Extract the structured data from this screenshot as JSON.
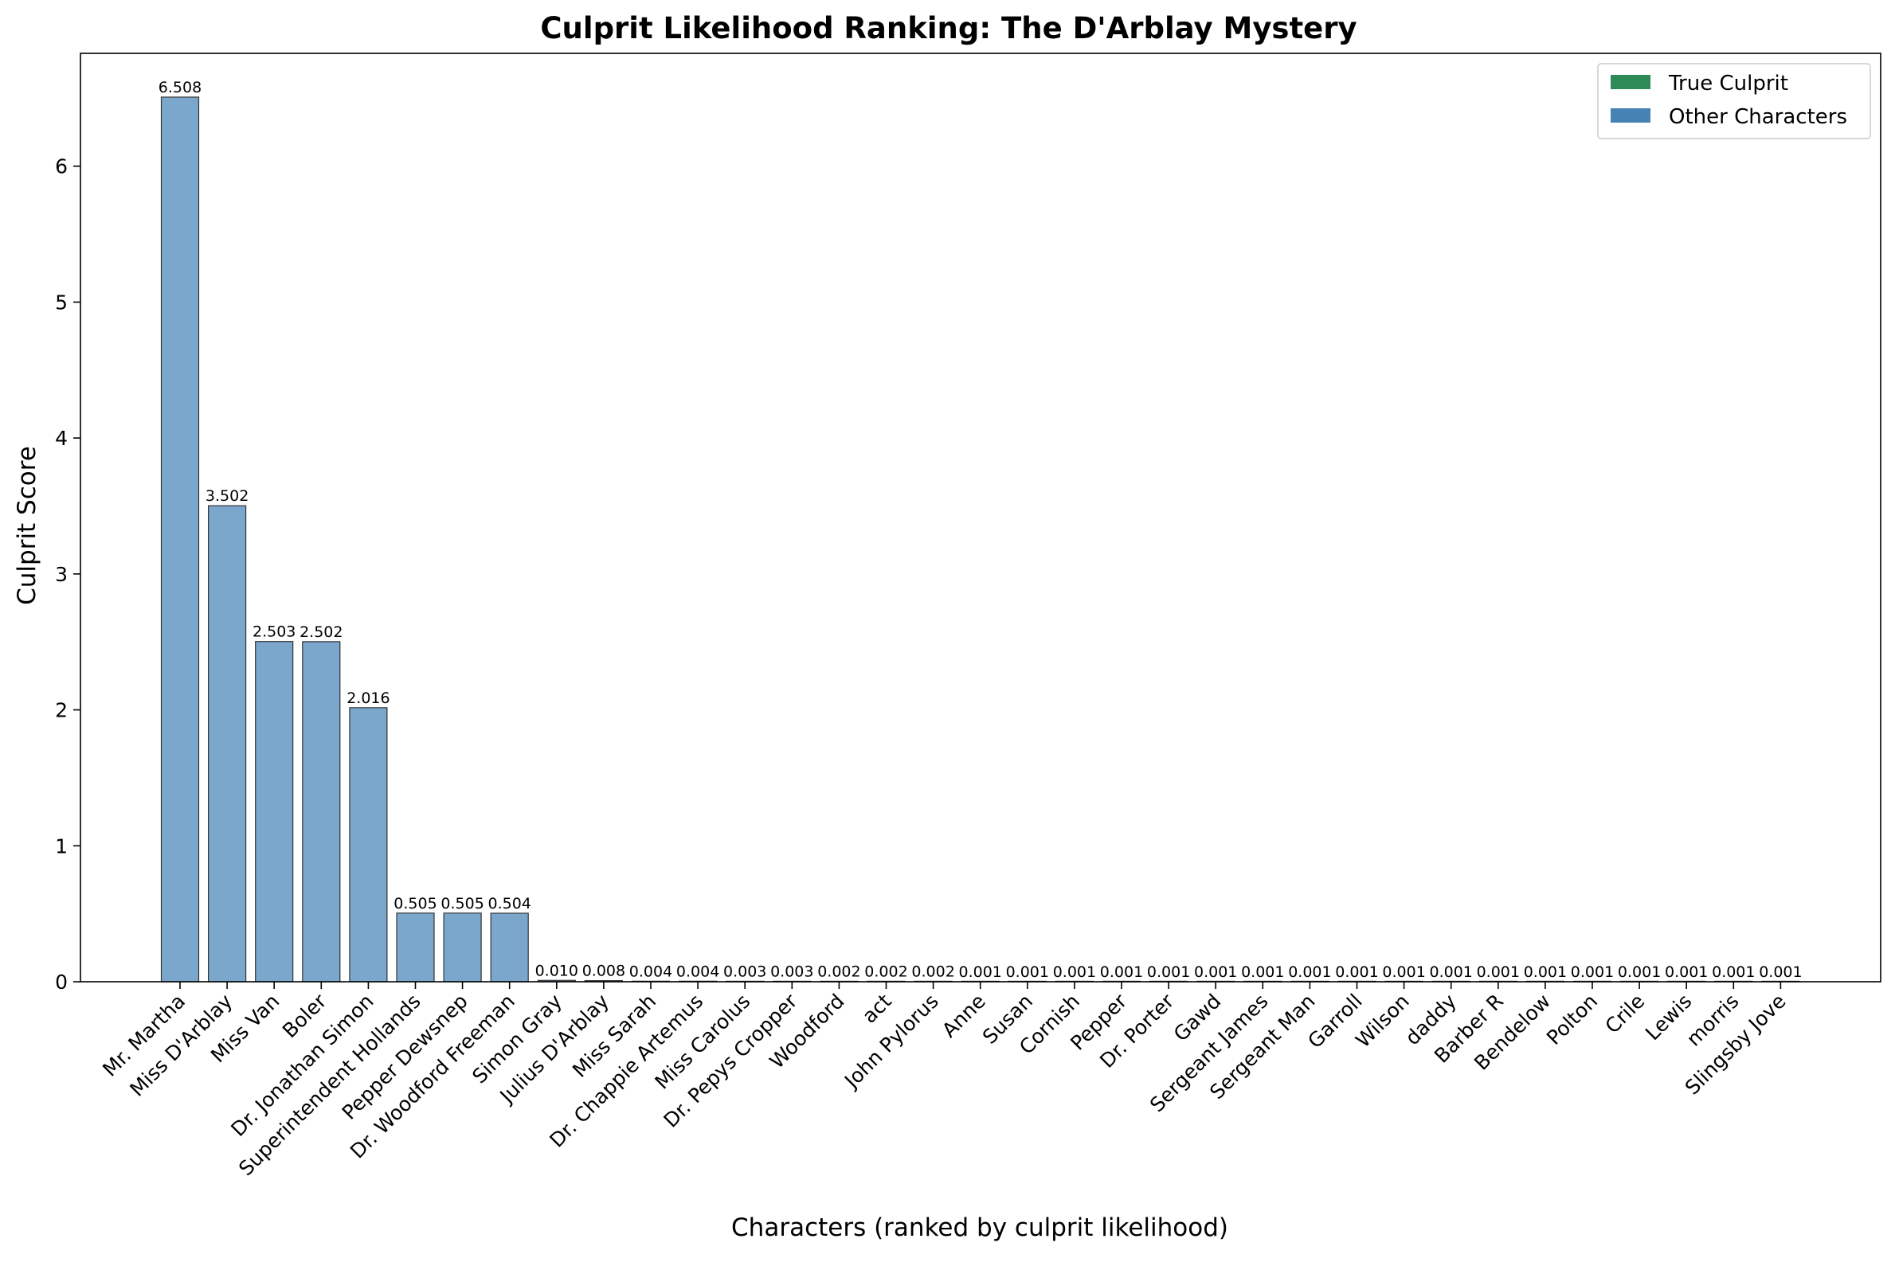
{
  "chart_data": {
    "type": "bar",
    "title": "Culprit Likelihood Ranking: The D'Arblay Mystery",
    "xlabel": "Characters (ranked by culprit likelihood)",
    "ylabel": "Culprit Score",
    "ylim": [
      0,
      6.83
    ],
    "yticks": [
      0,
      1,
      2,
      3,
      4,
      5,
      6
    ],
    "grid": false,
    "legend_position": "top-right",
    "legend": [
      {
        "label": "True Culprit",
        "color": "#2e8b57"
      },
      {
        "label": "Other Characters",
        "color": "#4682b4"
      }
    ],
    "bar_color": "#7ba7cc",
    "bar_edge_color": "#333333",
    "categories": [
      "Mr. Martha",
      "Miss D'Arblay",
      "Miss Van",
      "Boler",
      "Dr. Jonathan Simon",
      "Superintendent Hollands",
      "Pepper Dewsnep",
      "Dr. Woodford Freeman",
      "Simon Gray",
      "Julius D'Arblay",
      "Miss Sarah",
      "Dr. Chappie Artemus",
      "Miss Carolus",
      "Dr. Pepys Cropper",
      "Woodford",
      "act",
      "John Pylorus",
      "Anne",
      "Susan",
      "Cornish",
      "Pepper",
      "Dr. Porter",
      "Gawd",
      "Sergeant James",
      "Sergeant Man",
      "Garroll",
      "Wilson",
      "daddy",
      "Barber R",
      "Bendelow",
      "Polton",
      "Crile",
      "Lewis",
      "morris",
      "Slingsby Jove"
    ],
    "values": [
      6.508,
      3.502,
      2.503,
      2.502,
      2.016,
      0.505,
      0.505,
      0.504,
      0.01,
      0.008,
      0.004,
      0.004,
      0.003,
      0.003,
      0.002,
      0.002,
      0.002,
      0.001,
      0.001,
      0.001,
      0.001,
      0.001,
      0.001,
      0.001,
      0.001,
      0.001,
      0.001,
      0.001,
      0.001,
      0.001,
      0.001,
      0.001,
      0.001,
      0.001,
      0.001
    ],
    "value_labels": [
      "6.508",
      "3.502",
      "2.503",
      "2.502",
      "2.016",
      "0.505",
      "0.505",
      "0.504",
      "0.010",
      "0.008",
      "0.004",
      "0.004",
      "0.003",
      "0.003",
      "0.002",
      "0.002",
      "0.002",
      "0.001",
      "0.001",
      "0.001",
      "0.001",
      "0.001",
      "0.001",
      "0.001",
      "0.001",
      "0.001",
      "0.001",
      "0.001",
      "0.001",
      "0.001",
      "0.001",
      "0.001",
      "0.001",
      "0.001",
      "0.001"
    ]
  }
}
